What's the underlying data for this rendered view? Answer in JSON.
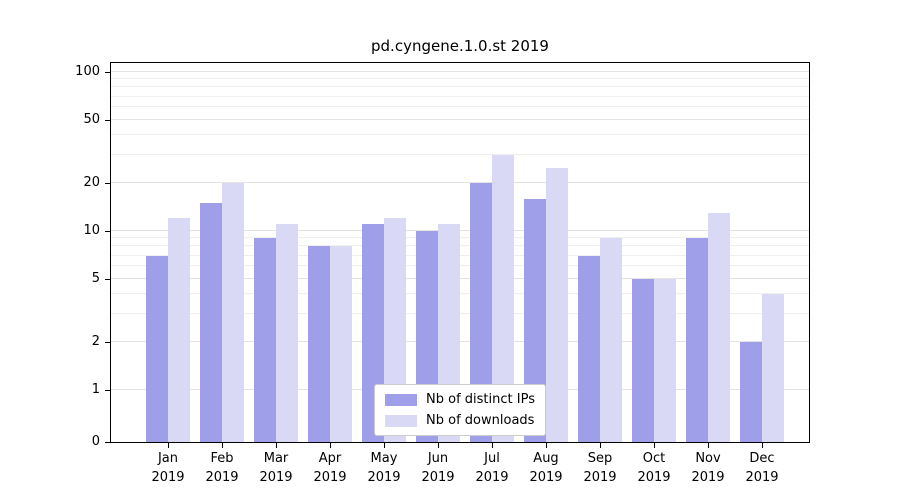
{
  "chart_data": {
    "type": "bar",
    "title": "pd.cyngene.1.0.st 2019",
    "categories": [
      "Jan",
      "Feb",
      "Mar",
      "Apr",
      "May",
      "Jun",
      "Jul",
      "Aug",
      "Sep",
      "Oct",
      "Nov",
      "Dec"
    ],
    "x_year": "2019",
    "series": [
      {
        "name": "Nb of distinct IPs",
        "color": "#9e9ee9",
        "values": [
          7,
          15,
          9,
          8,
          11,
          10,
          20,
          16,
          7,
          5,
          9,
          2
        ]
      },
      {
        "name": "Nb of downloads",
        "color": "#d9d9f6",
        "values": [
          12,
          20,
          11,
          8,
          12,
          11,
          30,
          25,
          9,
          5,
          13,
          4
        ]
      }
    ],
    "yscale": "symlog",
    "yticks": [
      0,
      1,
      2,
      5,
      10,
      20,
      50,
      100
    ],
    "ytick_labels": [
      "0",
      "1",
      "2",
      "5",
      "10",
      "20",
      "50",
      "100"
    ],
    "minor_yticks": [
      3,
      4,
      6,
      7,
      8,
      9,
      30,
      40,
      60,
      70,
      80,
      90
    ],
    "ylim": [
      0,
      115
    ],
    "grid": true,
    "legend_position": "lower center",
    "colors": {
      "grid_major": "#e3e3e3",
      "grid_minor": "#efefef",
      "spine": "#000000",
      "text": "#000000",
      "legend_border": "#cccccc",
      "legend_bg": "#ffffff"
    }
  }
}
